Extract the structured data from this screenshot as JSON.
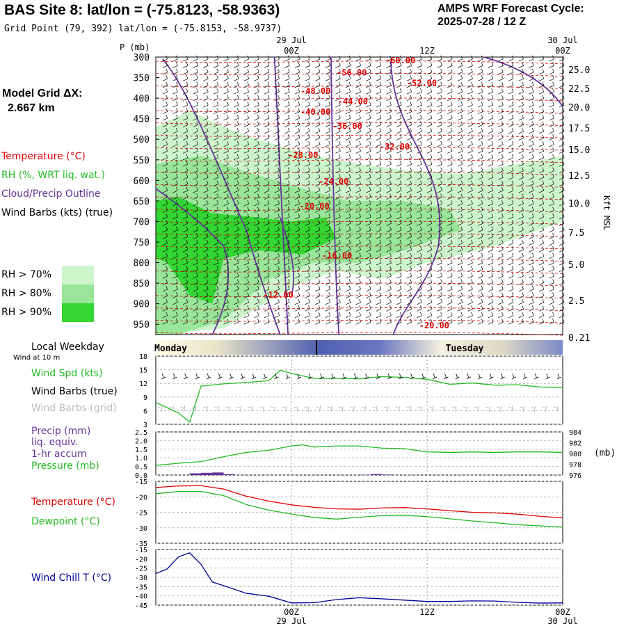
{
  "header": {
    "title": "BAS Site 8:  lat/lon = (-75.8123, -58.9363)",
    "grid_point": "Grid Point (79, 392) lat/lon = (-75.8153, -58.9737)",
    "cycle_line1": "AMPS WRF Forecast Cycle:",
    "cycle_line2": "2025-07-28 / 12  Z",
    "model_grid_label": "Model Grid ΔX:",
    "model_grid_value": "2.667 km"
  },
  "legend": {
    "temperature": "Temperature (°C)",
    "rh": "RH (%, WRT liq. wat.)",
    "cloud": "Cloud/Precip Outline",
    "wind": "Wind Barbs (kts) (true)",
    "rh70": "RH > 70%",
    "rh80": "RH > 80%",
    "rh90": "RH > 90%",
    "local_weekday": "Local Weekday",
    "wind_10m": "Wind at 10 m",
    "wind_spd": "Wind Spd (kts)",
    "barbs_true": "Wind Barbs (true)",
    "barbs_grid": "Wind Barbs (grid)",
    "precip1": "Precip (mm)",
    "precip2": "liq. equiv.",
    "precip3": "1-hr accum",
    "pressure": "Pressure (mb)",
    "temp2": "Temperature (°C)",
    "dewpoint": "Dewpoint (°C)",
    "windchill": "Wind Chill T (°C)",
    "pressure_unit": "(mb)",
    "kft": "Kft MSL",
    "p_unit": "P (mb)"
  },
  "colors": {
    "temperature": "#dd0000",
    "rh": "#22bb22",
    "cloud": "#663399",
    "windchill": "#000099",
    "rh70": "#ccf5cc",
    "rh80": "#99e599",
    "rh90": "#33d633",
    "barb_grid": "#aaaaaa"
  },
  "chart_data": [
    {
      "type": "heatmap",
      "name": "vertical_cross_section",
      "x_ticks": [
        {
          "hour": 12,
          "top": "29 Jul",
          "bottom": "00Z"
        },
        {
          "hour": 24,
          "top": "",
          "bottom": "12Z"
        },
        {
          "hour": 36,
          "top": "30 Jul",
          "bottom": "00Z"
        }
      ],
      "pressure_ticks": [
        "300",
        "350",
        "400",
        "450",
        "500",
        "550",
        "600",
        "650",
        "700",
        "750",
        "800",
        "850",
        "900",
        "950"
      ],
      "height_ticks": [
        "25.0",
        "22.5",
        "20.0",
        "17.5",
        "15.0",
        "12.5",
        "10.0",
        "7.5",
        "5.0",
        "2.5",
        "0.21"
      ],
      "temperature_labels": [
        {
          "text": "-60.00",
          "hour": 20.3,
          "p": 315
        },
        {
          "text": "-56.00",
          "hour": 16.0,
          "p": 345
        },
        {
          "text": "-52.00",
          "hour": 22.2,
          "p": 370
        },
        {
          "text": "-48.00",
          "hour": 12.8,
          "p": 390
        },
        {
          "text": "-44.00",
          "hour": 16.1,
          "p": 415
        },
        {
          "text": "-40.00",
          "hour": 12.8,
          "p": 440
        },
        {
          "text": "-36.00",
          "hour": 15.6,
          "p": 475
        },
        {
          "text": "-32.00",
          "hour": 19.8,
          "p": 525
        },
        {
          "text": "-28.00",
          "hour": 11.7,
          "p": 545
        },
        {
          "text": "-24.00",
          "hour": 14.4,
          "p": 610
        },
        {
          "text": "-20.00",
          "hour": 12.7,
          "p": 670
        },
        {
          "text": "-16.00",
          "hour": 14.7,
          "p": 790
        },
        {
          "text": "-12.00",
          "hour": 9.5,
          "p": 885
        },
        {
          "text": "-20.00",
          "hour": 23.3,
          "p": 960
        }
      ]
    },
    {
      "type": "line",
      "name": "wind_speed_10m",
      "ylabel": "Wind Spd (kts)",
      "y_ticks": [
        "18",
        "15",
        "12",
        "9",
        "6",
        "3"
      ],
      "ylim": [
        3,
        18
      ],
      "hours": [
        0,
        2,
        3,
        4,
        6,
        8,
        10,
        11,
        12,
        14,
        16,
        18,
        20,
        22,
        24,
        26,
        28,
        30,
        32,
        34,
        36
      ],
      "values": [
        7.8,
        5.5,
        3.5,
        11.4,
        11.9,
        12.2,
        12.6,
        14.9,
        14.2,
        13.1,
        13.1,
        13.0,
        13.5,
        13.3,
        12.9,
        11.8,
        12.1,
        11.6,
        11.7,
        11.2,
        11.1
      ]
    },
    {
      "type": "line",
      "name": "precip_pressure",
      "y_ticks_left": [
        "2.5",
        "2.0",
        "1.5",
        "1.0",
        "0.5",
        "0.0"
      ],
      "y_ticks_right": [
        "984",
        "982",
        "980",
        "978",
        "976"
      ],
      "ylim_left": [
        0,
        2.5
      ],
      "ylim_right": [
        976,
        984
      ],
      "pressure": {
        "hours": [
          0,
          2,
          4,
          6,
          8,
          10,
          12,
          13,
          14,
          16,
          18,
          20,
          22,
          24,
          26,
          28,
          30,
          32,
          34,
          36
        ],
        "values": [
          977.8,
          978.2,
          978.5,
          979.4,
          980.2,
          980.6,
          981.4,
          981.6,
          981.2,
          981.4,
          981.4,
          981.0,
          980.9,
          980.3,
          980.2,
          980.3,
          980.2,
          980.3,
          980.3,
          980.2
        ]
      },
      "precip": {
        "hours": [
          3,
          4,
          5,
          6,
          18,
          19,
          20
        ],
        "values": [
          0.1,
          0.13,
          0.15,
          0.05,
          0.02,
          0.06,
          0.03
        ]
      }
    },
    {
      "type": "line",
      "name": "temperature_dewpoint",
      "y_ticks": [
        "-15",
        "-20",
        "-25",
        "-30",
        "-35"
      ],
      "ylim": [
        -35,
        -15
      ],
      "hours": [
        0,
        2,
        4,
        6,
        8,
        10,
        12,
        14,
        16,
        18,
        20,
        22,
        24,
        26,
        28,
        30,
        32,
        34,
        36
      ],
      "temperature": [
        -17.0,
        -16.5,
        -16.4,
        -17.5,
        -19.8,
        -21.4,
        -22.6,
        -23.4,
        -23.9,
        -24.0,
        -23.6,
        -23.5,
        -23.9,
        -24.5,
        -25.0,
        -25.2,
        -25.6,
        -26.3,
        -26.8
      ],
      "dewpoint": [
        -19.0,
        -18.3,
        -18.3,
        -19.6,
        -22.5,
        -24.3,
        -25.6,
        -26.7,
        -27.2,
        -26.6,
        -26.1,
        -26.0,
        -26.4,
        -27.1,
        -27.8,
        -28.4,
        -29.0,
        -29.4,
        -29.8
      ]
    },
    {
      "type": "line",
      "name": "wind_chill",
      "ylabel": "Wind Chill T (°C)",
      "y_ticks": [
        "-15",
        "-20",
        "-25",
        "-30",
        "-35",
        "-40",
        "-45"
      ],
      "ylim": [
        -45,
        -15
      ],
      "hours": [
        0,
        1,
        2,
        3,
        4,
        5,
        6,
        8,
        10,
        12,
        14,
        16,
        18,
        20,
        22,
        24,
        26,
        28,
        30,
        32,
        34,
        36
      ],
      "values": [
        -28.0,
        -25.5,
        -19.0,
        -16.8,
        -23.0,
        -32.5,
        -34.5,
        -38.6,
        -40.2,
        -43.8,
        -43.7,
        -42.0,
        -41.0,
        -41.6,
        -42.3,
        -43.0,
        -43.0,
        -42.7,
        -42.8,
        -43.5,
        -43.9,
        -43.8
      ]
    },
    {
      "type": "table",
      "name": "weekday_bar",
      "labels": [
        "Monday",
        "Tuesday"
      ]
    }
  ]
}
